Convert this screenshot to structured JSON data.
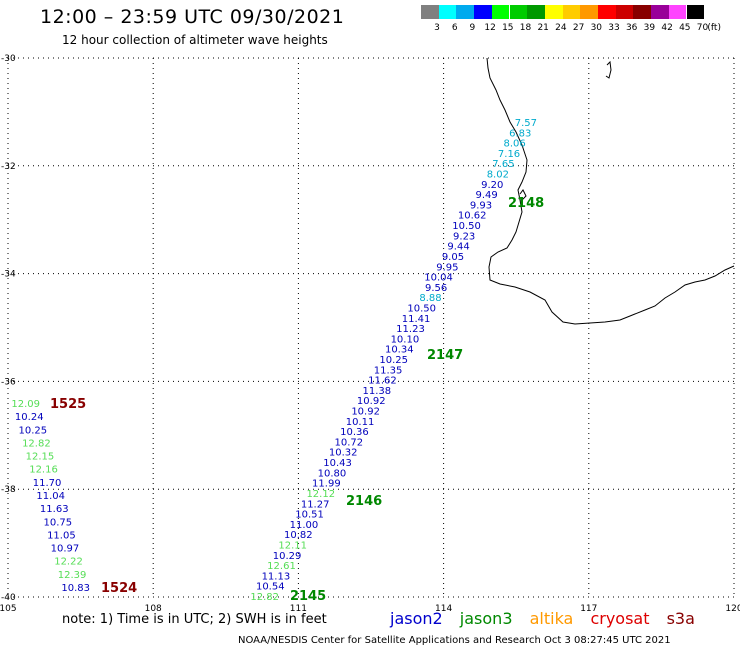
{
  "header": {
    "title": "12:00 – 23:59 UTC 09/30/2021",
    "subtitle": "12 hour collection of altimeter wave heights"
  },
  "color_scale": {
    "unit": "(ft)",
    "bins": [
      {
        "label": "3",
        "color": "#808080"
      },
      {
        "label": "6",
        "color": "#00ffff"
      },
      {
        "label": "9",
        "color": "#00aaee"
      },
      {
        "label": "12",
        "color": "#0000ff"
      },
      {
        "label": "15",
        "color": "#00ff00"
      },
      {
        "label": "18",
        "color": "#00cc00"
      },
      {
        "label": "21",
        "color": "#009900"
      },
      {
        "label": "24",
        "color": "#ffff00"
      },
      {
        "label": "27",
        "color": "#ffcc00"
      },
      {
        "label": "30",
        "color": "#ff9900"
      },
      {
        "label": "33",
        "color": "#ff0000"
      },
      {
        "label": "36",
        "color": "#cc0000"
      },
      {
        "label": "39",
        "color": "#880000"
      },
      {
        "label": "42",
        "color": "#990099"
      },
      {
        "label": "45",
        "color": "#ff44ff"
      },
      {
        "label": "70",
        "color": "#000000"
      }
    ]
  },
  "axes": {
    "lon_ticks": [
      "105",
      "108",
      "111",
      "114",
      "117",
      "120"
    ],
    "lat_ticks": [
      "-30",
      "-32",
      "-34",
      "-36",
      "-38",
      "-40"
    ]
  },
  "map": {
    "lon_range": [
      105,
      120
    ],
    "lat_range": [
      -40,
      -30
    ],
    "coast_color": "#000000"
  },
  "satellites": {
    "jason2": {
      "label": "jason2",
      "color": "#0000cc"
    },
    "jason3": {
      "label": "jason3",
      "color": "#008800"
    },
    "altika": {
      "label": "altika",
      "color": "#ff9900"
    },
    "cryosat": {
      "label": "cryosat",
      "color": "#dd0000"
    },
    "s3a": {
      "label": "s3a",
      "color": "#880000"
    }
  },
  "tracks": [
    {
      "name": "main-track",
      "points": [
        {
          "text": "7.57",
          "color": "#00aacc"
        },
        {
          "text": "6.83",
          "color": "#00aacc"
        },
        {
          "text": "8.06",
          "color": "#00aacc"
        },
        {
          "text": "7.16",
          "color": "#00aacc"
        },
        {
          "text": "7.65",
          "color": "#00aacc"
        },
        {
          "text": "8.02",
          "color": "#00aacc"
        },
        {
          "text": "9.20",
          "color": "#0000bb"
        },
        {
          "text": "9.49",
          "color": "#0000bb"
        },
        {
          "text": "9.93",
          "color": "#0000bb"
        },
        {
          "text": "10.62",
          "color": "#0000bb"
        },
        {
          "text": "10.50",
          "color": "#0000bb"
        },
        {
          "text": "9.23",
          "color": "#0000bb"
        },
        {
          "text": "9.44",
          "color": "#0000bb"
        },
        {
          "text": "9.05",
          "color": "#0000bb"
        },
        {
          "text": "9.95",
          "color": "#0000bb"
        },
        {
          "text": "10.04",
          "color": "#0000bb"
        },
        {
          "text": "9.56",
          "color": "#0000bb"
        },
        {
          "text": "8.88",
          "color": "#00aacc"
        },
        {
          "text": "10.50",
          "color": "#0000bb"
        },
        {
          "text": "11.41",
          "color": "#0000bb"
        },
        {
          "text": "11.23",
          "color": "#0000bb"
        },
        {
          "text": "10.10",
          "color": "#0000bb"
        },
        {
          "text": "10.34",
          "color": "#0000bb"
        },
        {
          "text": "10.25",
          "color": "#0000bb"
        },
        {
          "text": "11.35",
          "color": "#0000bb"
        },
        {
          "text": "11.62",
          "color": "#0000bb"
        },
        {
          "text": "11.38",
          "color": "#0000bb"
        },
        {
          "text": "10.92",
          "color": "#0000bb"
        },
        {
          "text": "10.92",
          "color": "#0000bb"
        },
        {
          "text": "10.11",
          "color": "#0000bb"
        },
        {
          "text": "10.36",
          "color": "#0000bb"
        },
        {
          "text": "10.72",
          "color": "#0000bb"
        },
        {
          "text": "10.32",
          "color": "#0000bb"
        },
        {
          "text": "10.43",
          "color": "#0000bb"
        },
        {
          "text": "10.80",
          "color": "#0000bb"
        },
        {
          "text": "11.99",
          "color": "#0000bb"
        },
        {
          "text": "12.12",
          "color": "#55dd55"
        },
        {
          "text": "11.27",
          "color": "#0000bb"
        },
        {
          "text": "10.51",
          "color": "#0000bb"
        },
        {
          "text": "11.00",
          "color": "#0000bb"
        },
        {
          "text": "10.82",
          "color": "#0000bb"
        },
        {
          "text": "12.11",
          "color": "#55dd55"
        },
        {
          "text": "10.29",
          "color": "#0000bb"
        },
        {
          "text": "12.61",
          "color": "#55dd55"
        },
        {
          "text": "11.13",
          "color": "#0000bb"
        },
        {
          "text": "10.54",
          "color": "#0000bb"
        },
        {
          "text": "12.82",
          "color": "#55dd55"
        }
      ]
    },
    {
      "name": "west-track",
      "points": [
        {
          "text": "12.09",
          "color": "#55dd55"
        },
        {
          "text": "10.24",
          "color": "#0000bb"
        },
        {
          "text": "10.25",
          "color": "#0000bb"
        },
        {
          "text": "12.82",
          "color": "#55dd55"
        },
        {
          "text": "12.15",
          "color": "#55dd55"
        },
        {
          "text": "12.16",
          "color": "#55dd55"
        },
        {
          "text": "11.70",
          "color": "#0000bb"
        },
        {
          "text": "11.04",
          "color": "#0000bb"
        },
        {
          "text": "11.63",
          "color": "#0000bb"
        },
        {
          "text": "10.75",
          "color": "#0000bb"
        },
        {
          "text": "11.05",
          "color": "#0000bb"
        },
        {
          "text": "10.97",
          "color": "#0000bb"
        },
        {
          "text": "12.22",
          "color": "#55dd55"
        },
        {
          "text": "12.39",
          "color": "#55dd55"
        },
        {
          "text": "10.83",
          "color": "#0000bb"
        }
      ]
    }
  ],
  "pass_times": [
    {
      "text": "2148",
      "color": "#008800"
    },
    {
      "text": "2147",
      "color": "#008800"
    },
    {
      "text": "2146",
      "color": "#008800"
    },
    {
      "text": "2145",
      "color": "#008800"
    },
    {
      "text": "1525",
      "color": "#880000"
    },
    {
      "text": "1524",
      "color": "#880000"
    }
  ],
  "footer": {
    "note": "note: 1) Time is in UTC; 2) SWH is in feet",
    "credit": "NOAA/NESDIS Center for Satellite Applications and Research   Oct  3 08:27:45 UTC 2021"
  }
}
